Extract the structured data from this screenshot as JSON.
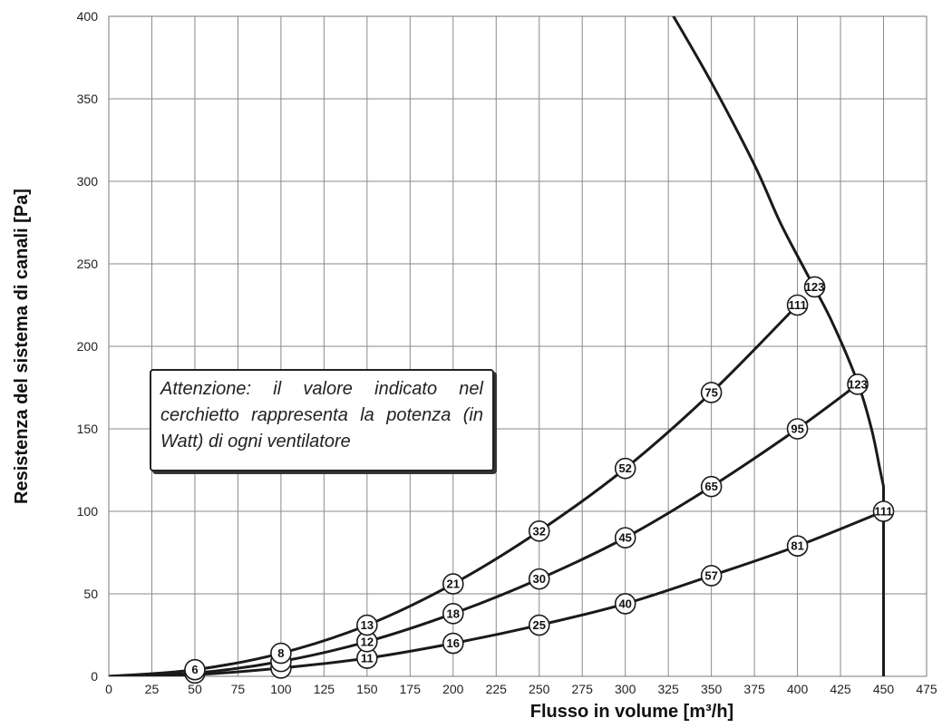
{
  "chart_data": {
    "type": "line",
    "xlabel": "Flusso in volume [m³/h]",
    "ylabel": "Resistenza del sistema di canali [Pa]",
    "xlim": [
      0,
      475
    ],
    "ylim": [
      0,
      400
    ],
    "x_ticks": [
      0,
      25,
      50,
      75,
      100,
      125,
      150,
      175,
      200,
      225,
      250,
      275,
      300,
      325,
      350,
      375,
      400,
      425,
      450,
      475
    ],
    "y_ticks": [
      0,
      50,
      100,
      150,
      200,
      250,
      300,
      350,
      400
    ],
    "grid": true,
    "series": [
      {
        "points": [
          [
            0,
            0
          ],
          [
            50,
            1
          ],
          [
            100,
            5
          ],
          [
            150,
            11
          ],
          [
            200,
            20
          ],
          [
            250,
            31
          ],
          [
            300,
            44
          ],
          [
            350,
            61
          ],
          [
            400,
            79
          ],
          [
            450,
            100
          ]
        ],
        "markers": [
          {
            "x": 100,
            "y": 5,
            "label": ""
          },
          {
            "x": 150,
            "y": 11,
            "label": "11"
          },
          {
            "x": 200,
            "y": 20,
            "label": "16"
          },
          {
            "x": 250,
            "y": 31,
            "label": "25"
          },
          {
            "x": 300,
            "y": 44,
            "label": "40"
          },
          {
            "x": 350,
            "y": 61,
            "label": "57"
          },
          {
            "x": 400,
            "y": 79,
            "label": "81"
          },
          {
            "x": 450,
            "y": 100,
            "label": "111"
          }
        ]
      },
      {
        "points": [
          [
            0,
            0
          ],
          [
            50,
            2
          ],
          [
            100,
            9
          ],
          [
            150,
            21
          ],
          [
            200,
            38
          ],
          [
            250,
            59
          ],
          [
            300,
            84
          ],
          [
            350,
            115
          ],
          [
            400,
            150
          ],
          [
            435,
            177
          ]
        ],
        "markers": [
          {
            "x": 50,
            "y": 2,
            "label": ""
          },
          {
            "x": 100,
            "y": 9,
            "label": ""
          },
          {
            "x": 150,
            "y": 21,
            "label": "12"
          },
          {
            "x": 200,
            "y": 38,
            "label": "18"
          },
          {
            "x": 250,
            "y": 59,
            "label": "30"
          },
          {
            "x": 300,
            "y": 84,
            "label": "45"
          },
          {
            "x": 350,
            "y": 115,
            "label": "65"
          },
          {
            "x": 400,
            "y": 150,
            "label": "95"
          },
          {
            "x": 435,
            "y": 177,
            "label": "123"
          }
        ]
      },
      {
        "points": [
          [
            0,
            0
          ],
          [
            50,
            4
          ],
          [
            100,
            14
          ],
          [
            150,
            31
          ],
          [
            200,
            56
          ],
          [
            250,
            88
          ],
          [
            300,
            126
          ],
          [
            350,
            172
          ],
          [
            400,
            225
          ]
        ],
        "markers": [
          {
            "x": 50,
            "y": 4,
            "label": "6"
          },
          {
            "x": 100,
            "y": 14,
            "label": "8"
          },
          {
            "x": 150,
            "y": 31,
            "label": "13"
          },
          {
            "x": 200,
            "y": 56,
            "label": "21"
          },
          {
            "x": 250,
            "y": 88,
            "label": "32"
          },
          {
            "x": 300,
            "y": 126,
            "label": "52"
          },
          {
            "x": 350,
            "y": 172,
            "label": "75"
          },
          {
            "x": 400,
            "y": 225,
            "label": "111"
          }
        ]
      },
      {
        "points": [
          [
            328,
            400
          ],
          [
            350,
            360
          ],
          [
            375,
            310
          ],
          [
            390,
            275
          ],
          [
            405,
            245
          ],
          [
            420,
            215
          ],
          [
            435,
            178
          ],
          [
            443,
            150
          ],
          [
            448,
            125
          ],
          [
            450,
            115
          ],
          [
            450,
            0
          ]
        ],
        "markers": [
          {
            "x": 410,
            "y": 236,
            "label": "123"
          }
        ]
      }
    ]
  },
  "note": {
    "text": "Attenzione: il valore indicato nel cerchietto rappresenta la potenza (in Watt) di ogni ventilatore"
  }
}
